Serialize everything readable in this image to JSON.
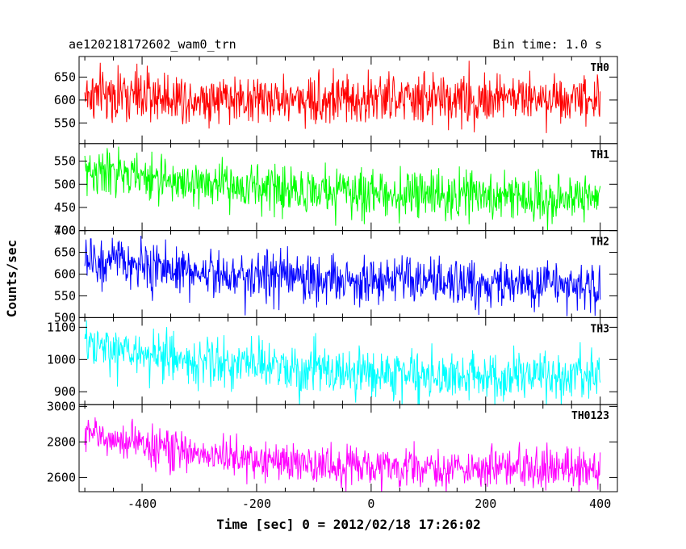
{
  "header": {
    "title": "ae120218172602_wam0_trn",
    "bin_time": "Bin time: 1.0 s"
  },
  "axes": {
    "xlabel": "Time [sec] 0 = 2012/02/18 17:26:02",
    "ylabel": "Counts/sec",
    "x_ticks": [
      "-400",
      "-200",
      "0",
      "200",
      "400"
    ]
  },
  "chart_data": {
    "type": "line",
    "title": "ae120218172602_wam0_trn",
    "xlabel": "Time [sec] 0 = 2012/02/18 17:26:02",
    "ylabel": "Counts/sec",
    "xlim": [
      -510,
      430
    ],
    "x_ticks": [
      -400,
      -200,
      0,
      200,
      400
    ],
    "bin_time_s": 1.0,
    "x_range_data": [
      -500,
      400
    ],
    "grid": false,
    "panels": [
      {
        "name": "TH0",
        "color": "#ff0000",
        "ylim": [
          505,
          695
        ],
        "y_ticks": [
          550,
          600,
          650
        ],
        "y_tick_labels": [
          "550",
          "600",
          "650"
        ],
        "trend": {
          "x": [
            -500,
            -200,
            100,
            400
          ],
          "y": [
            612,
            602,
            602,
            608
          ]
        },
        "noise_sigma": 28
      },
      {
        "name": "TH1",
        "color": "#00ff00",
        "ylim": [
          400,
          588
        ],
        "y_ticks": [
          400,
          450,
          500,
          550
        ],
        "y_tick_labels": [
          "400",
          "450",
          "500",
          "550"
        ],
        "trend": {
          "x": [
            -500,
            -300,
            -100,
            100,
            400
          ],
          "y": [
            530,
            500,
            485,
            477,
            470
          ]
        },
        "noise_sigma": 25
      },
      {
        "name": "TH2",
        "color": "#0000ff",
        "ylim": [
          500,
          700
        ],
        "y_ticks": [
          500,
          550,
          600,
          650,
          700
        ],
        "y_tick_labels": [
          "500",
          "550",
          "600",
          "650",
          "700"
        ],
        "trend": {
          "x": [
            -500,
            -300,
            -100,
            100,
            400
          ],
          "y": [
            632,
            605,
            590,
            580,
            572
          ]
        },
        "noise_sigma": 28
      },
      {
        "name": "TH3",
        "color": "#00ffff",
        "ylim": [
          860,
          1130
        ],
        "y_ticks": [
          900,
          1000,
          1100
        ],
        "y_tick_labels": [
          "900",
          "1000",
          "1100"
        ],
        "trend": {
          "x": [
            -500,
            -300,
            -100,
            100,
            400
          ],
          "y": [
            1040,
            995,
            965,
            950,
            945
          ]
        },
        "noise_sigma": 38
      },
      {
        "name": "TH0123",
        "color": "#ff00ff",
        "ylim": [
          2520,
          3010
        ],
        "y_ticks": [
          2600,
          2800,
          3000
        ],
        "y_tick_labels": [
          "2600",
          "2800",
          "3000"
        ],
        "trend": {
          "x": [
            -500,
            -300,
            -100,
            100,
            400
          ],
          "y": [
            2845,
            2730,
            2670,
            2650,
            2650
          ]
        },
        "noise_sigma": 55
      }
    ]
  }
}
